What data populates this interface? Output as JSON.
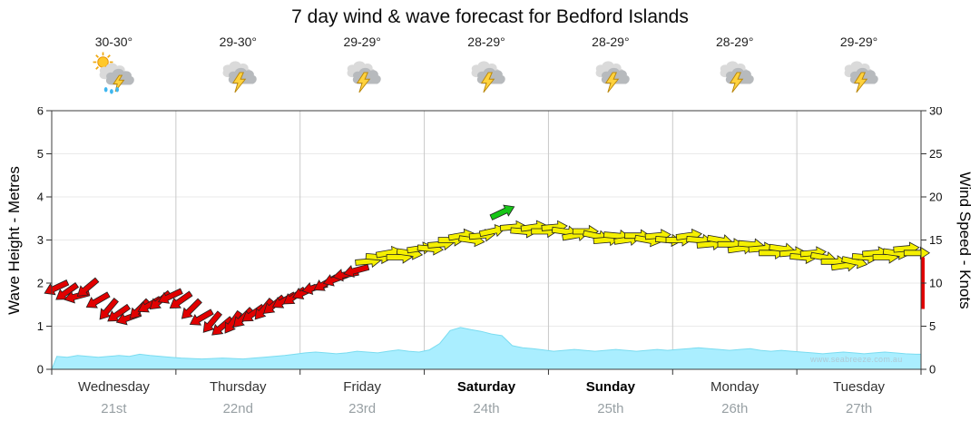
{
  "title": "7 day wind & wave forecast for Bedford Islands",
  "watermark": "www.seabreeze.com.au",
  "axes": {
    "left_label": "Wave Height - Metres",
    "right_label": "Wind Speed - Knots",
    "left_ticks": [
      0,
      1,
      2,
      3,
      4,
      5,
      6
    ],
    "right_ticks": [
      0,
      5,
      10,
      15,
      20,
      25,
      30
    ]
  },
  "days": [
    {
      "name": "Wednesday",
      "date": "21st",
      "temp": "30-30°",
      "icon": "sun-storm-rain",
      "bold": false
    },
    {
      "name": "Thursday",
      "date": "22nd",
      "temp": "29-30°",
      "icon": "storm",
      "bold": false
    },
    {
      "name": "Friday",
      "date": "23rd",
      "temp": "29-29°",
      "icon": "storm",
      "bold": false
    },
    {
      "name": "Saturday",
      "date": "24th",
      "temp": "28-29°",
      "icon": "storm",
      "bold": true
    },
    {
      "name": "Sunday",
      "date": "25th",
      "temp": "28-29°",
      "icon": "storm",
      "bold": true
    },
    {
      "name": "Monday",
      "date": "26th",
      "temp": "28-29°",
      "icon": "storm",
      "bold": false
    },
    {
      "name": "Tuesday",
      "date": "27th",
      "temp": "29-29°",
      "icon": "storm",
      "bold": false
    }
  ],
  "chart_data": {
    "type": "area+wind-arrows",
    "x_unit": "days",
    "x_range": [
      0,
      7
    ],
    "samples_per_day": 12,
    "wave_axis": {
      "label": "Wave Height - Metres",
      "range": [
        0,
        6
      ]
    },
    "wind_axis": {
      "label": "Wind Speed - Knots",
      "range": [
        0,
        30
      ]
    },
    "wind_knots": [
      9.5,
      9.0,
      8.5,
      9.5,
      8.0,
      7.0,
      6.5,
      6.0,
      7.0,
      7.5,
      8.0,
      8.5,
      8.0,
      7.0,
      6.0,
      5.5,
      5.0,
      5.5,
      6.0,
      6.5,
      7.0,
      7.5,
      8.0,
      8.5,
      9.0,
      9.5,
      10.0,
      10.5,
      11.0,
      11.5,
      12.5,
      13.0,
      13.5,
      13.0,
      13.5,
      14.0,
      14.0,
      14.5,
      15.0,
      15.5,
      15.0,
      15.5,
      16.0,
      18.2,
      16.5,
      16.0,
      16.5,
      16.0,
      16.5,
      16.0,
      15.5,
      16.0,
      15.5,
      15.0,
      15.5,
      15.0,
      15.5,
      15.0,
      15.5,
      15.0,
      15.0,
      15.5,
      15.0,
      14.5,
      15.0,
      14.5,
      14.0,
      14.5,
      14.0,
      13.5,
      14.0,
      13.5,
      13.0,
      13.5,
      13.0,
      12.5,
      12.0,
      12.5,
      13.0,
      13.5,
      13.0,
      13.5,
      14.0,
      13.5
    ],
    "wind_dir_deg": [
      205,
      215,
      195,
      220,
      210,
      230,
      215,
      200,
      225,
      210,
      220,
      205,
      215,
      225,
      210,
      230,
      220,
      235,
      225,
      215,
      230,
      220,
      210,
      215,
      205,
      195,
      210,
      200,
      190,
      195,
      5,
      -5,
      10,
      0,
      -8,
      8,
      -5,
      5,
      0,
      10,
      -8,
      5,
      12,
      25,
      5,
      -5,
      8,
      0,
      5,
      -8,
      10,
      0,
      -12,
      5,
      -5,
      8,
      0,
      -10,
      5,
      -5,
      0,
      8,
      -5,
      5,
      -10,
      0,
      8,
      -5,
      5,
      0,
      -8,
      5,
      -5,
      5,
      -10,
      0,
      8,
      -12,
      -5,
      5,
      0,
      -8,
      5,
      0
    ],
    "wave_m": [
      0.3,
      0.28,
      0.32,
      0.3,
      0.28,
      0.3,
      0.32,
      0.3,
      0.35,
      0.32,
      0.3,
      0.28,
      0.26,
      0.25,
      0.24,
      0.25,
      0.26,
      0.25,
      0.24,
      0.26,
      0.28,
      0.3,
      0.32,
      0.35,
      0.38,
      0.4,
      0.38,
      0.36,
      0.38,
      0.42,
      0.4,
      0.38,
      0.42,
      0.45,
      0.42,
      0.4,
      0.45,
      0.6,
      0.9,
      0.97,
      0.92,
      0.88,
      0.82,
      0.78,
      0.55,
      0.5,
      0.48,
      0.45,
      0.42,
      0.44,
      0.46,
      0.44,
      0.42,
      0.44,
      0.46,
      0.44,
      0.42,
      0.44,
      0.46,
      0.44,
      0.46,
      0.48,
      0.5,
      0.48,
      0.46,
      0.44,
      0.46,
      0.48,
      0.44,
      0.42,
      0.44,
      0.42,
      0.4,
      0.38,
      0.36,
      0.38,
      0.4,
      0.38,
      0.36,
      0.38,
      0.4,
      0.38,
      0.36,
      0.35
    ],
    "colors": {
      "calm": "#e10000",
      "moderate": "#f5f000",
      "fresh": "#17c617",
      "wave_fill": "#aaeeff",
      "wave_edge": "#7adcf0"
    },
    "color_thresholds": {
      "yellow_min": 11.75,
      "green_min": 17.5
    },
    "edge_marker": {
      "knots_from": 7,
      "knots_to": 13,
      "color": "#e10000"
    }
  }
}
